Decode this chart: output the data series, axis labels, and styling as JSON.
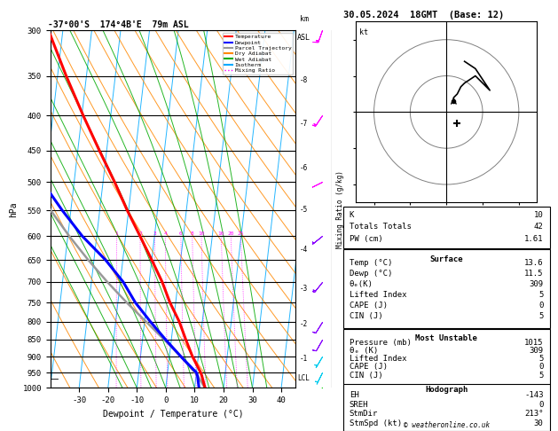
{
  "title_left": "-37°00'S  174°4B'E  79m ASL",
  "title_right": "30.05.2024  18GMT  (Base: 12)",
  "xlabel": "Dewpoint / Temperature (°C)",
  "ylabel_left": "hPa",
  "pressure_levels": [
    300,
    350,
    400,
    450,
    500,
    550,
    600,
    650,
    700,
    750,
    800,
    850,
    900,
    950,
    1000
  ],
  "km_ticks": [
    1,
    2,
    3,
    4,
    5,
    6,
    7,
    8
  ],
  "km_pressures": [
    907,
    808,
    715,
    628,
    549,
    477,
    411,
    355
  ],
  "temperature_profile": {
    "pressure": [
      1000,
      960,
      950,
      900,
      850,
      800,
      750,
      700,
      650,
      600,
      550,
      500,
      450,
      400,
      350,
      300
    ],
    "temp": [
      13.6,
      12.0,
      11.5,
      8.0,
      5.0,
      2.0,
      -2.0,
      -5.5,
      -10.0,
      -15.0,
      -20.5,
      -26.0,
      -32.5,
      -39.5,
      -47.0,
      -55.0
    ]
  },
  "dewpoint_profile": {
    "pressure": [
      1000,
      960,
      950,
      900,
      850,
      800,
      750,
      700,
      650,
      600,
      550,
      500,
      450,
      400,
      350,
      300
    ],
    "dewp": [
      11.5,
      10.5,
      10.0,
      4.0,
      -2.0,
      -8.0,
      -14.0,
      -19.0,
      -26.0,
      -35.0,
      -43.0,
      -51.0,
      -57.0,
      -63.0,
      -68.0,
      -72.0
    ]
  },
  "parcel_profile": {
    "pressure": [
      1000,
      960,
      950,
      900,
      850,
      800,
      750,
      700,
      650,
      600,
      550,
      500,
      450,
      400,
      350,
      300
    ],
    "temp": [
      13.6,
      10.5,
      9.5,
      4.0,
      -2.5,
      -9.5,
      -17.0,
      -24.5,
      -32.0,
      -39.5,
      -47.0,
      -53.5,
      -59.0,
      -63.5,
      -68.0,
      -72.0
    ]
  },
  "temperature_color": "#ff0000",
  "dewpoint_color": "#0000ff",
  "parcel_color": "#999999",
  "dry_adiabat_color": "#ff8800",
  "wet_adiabat_color": "#00aa00",
  "isotherm_color": "#00aaff",
  "mixing_ratio_color": "#ff00ff",
  "lcl_pressure": 968,
  "info_panel": {
    "K": 10,
    "Totals_Totals": 42,
    "PW_cm": 1.61,
    "Surface_Temp": 13.6,
    "Surface_Dewp": 11.5,
    "Surface_theta_e": 309,
    "Surface_Lifted_Index": 5,
    "Surface_CAPE": 0,
    "Surface_CIN": 5,
    "MU_Pressure": 1015,
    "MU_theta_e": 309,
    "MU_Lifted_Index": 5,
    "MU_CAPE": 0,
    "MU_CIN": 5,
    "Hodo_EH": -143,
    "Hodo_SREH": 0,
    "StmDir": 213,
    "StmSpd": 30
  },
  "wind_barbs": {
    "pressures": [
      1000,
      950,
      900,
      850,
      800,
      700,
      600,
      500,
      400,
      300
    ],
    "u": [
      2,
      2,
      3,
      4,
      5,
      8,
      10,
      12,
      8,
      5
    ],
    "v": [
      3,
      4,
      5,
      7,
      8,
      10,
      8,
      6,
      12,
      14
    ],
    "colors": [
      "#00cc00",
      "#00ccee",
      "#00ccee",
      "#8800ff",
      "#8800ff",
      "#8800ff",
      "#8800ff",
      "#ff00ff",
      "#ff00ff",
      "#ff00ff"
    ]
  },
  "background_color": "#ffffff"
}
